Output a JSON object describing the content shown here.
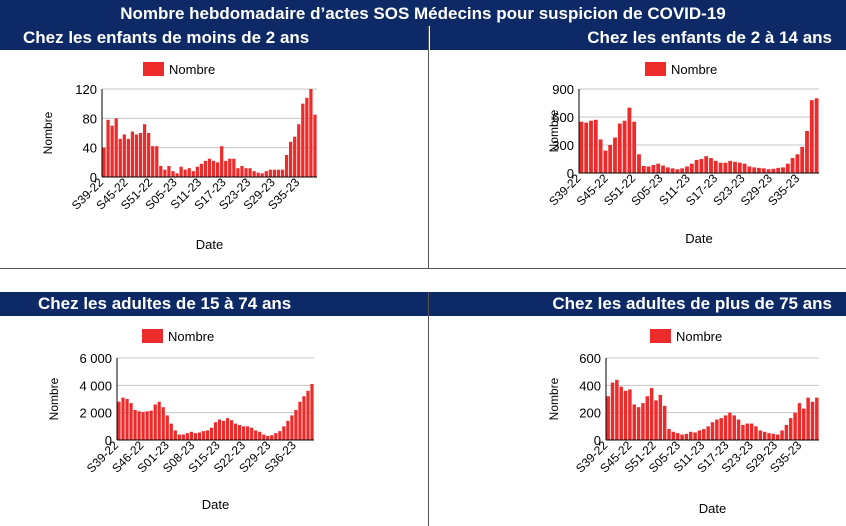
{
  "main_title": "Nombre hebdomadaire d’actes SOS Médecins pour suspicion de COVID-19",
  "colors": {
    "bar": "#ee2b2b",
    "header_bg": "#0d2a66"
  },
  "chart_data": [
    {
      "type": "bar",
      "title": "Chez les enfants de moins de 2 ans",
      "legend": "Nombre",
      "xlabel": "Date",
      "ylabel": "Nombre",
      "ylim": [
        0,
        120
      ],
      "yticks": [
        "0",
        "40",
        "80",
        "120"
      ],
      "tick_labels": [
        "S39-22",
        "S45-22",
        "S51-22",
        "S05-23",
        "S11-23",
        "S17-23",
        "S23-23",
        "S29-23",
        "S35-23"
      ],
      "values": [
        40,
        78,
        70,
        80,
        52,
        58,
        52,
        62,
        58,
        60,
        72,
        60,
        42,
        42,
        15,
        10,
        15,
        8,
        5,
        14,
        10,
        12,
        8,
        14,
        18,
        22,
        25,
        22,
        20,
        42,
        22,
        25,
        25,
        12,
        15,
        12,
        12,
        8,
        6,
        5,
        8,
        10,
        10,
        10,
        10,
        30,
        48,
        55,
        72,
        100,
        108,
        120,
        85
      ]
    },
    {
      "type": "bar",
      "title": "Chez les enfants de 2 à 14 ans",
      "legend": "Nombre",
      "xlabel": "Date",
      "ylabel": "Nombre",
      "ylim": [
        0,
        900
      ],
      "yticks": [
        "0",
        "300",
        "600",
        "900"
      ],
      "tick_labels": [
        "S39-22",
        "S45-22",
        "S51-22",
        "S05-23",
        "S11-23",
        "S17-23",
        "S23-23",
        "S29-23",
        "S35-23"
      ],
      "values": [
        550,
        540,
        560,
        570,
        360,
        240,
        300,
        380,
        530,
        560,
        700,
        550,
        200,
        75,
        70,
        85,
        100,
        80,
        60,
        50,
        40,
        50,
        70,
        100,
        140,
        150,
        180,
        160,
        130,
        110,
        110,
        130,
        120,
        110,
        100,
        70,
        60,
        55,
        50,
        40,
        45,
        55,
        60,
        100,
        160,
        200,
        280,
        450,
        780,
        800
      ]
    },
    {
      "type": "bar",
      "title": "Chez les adultes de 15 à 74 ans",
      "legend": "Nombre",
      "xlabel": "Date",
      "ylabel": "Nombre",
      "ylim": [
        0,
        6000
      ],
      "yticks": [
        "0",
        "2 000",
        "4 000",
        "6 000"
      ],
      "tick_labels": [
        "S39-22",
        "S46-22",
        "S01-23",
        "S08-23",
        "S15-23",
        "S22-23",
        "S29-23",
        "S36-23"
      ],
      "values": [
        2800,
        3100,
        3000,
        2700,
        2200,
        2100,
        2050,
        2100,
        2150,
        2600,
        2800,
        2400,
        1800,
        1200,
        700,
        400,
        400,
        500,
        600,
        500,
        550,
        650,
        700,
        900,
        1300,
        1500,
        1400,
        1600,
        1450,
        1200,
        1100,
        1000,
        1000,
        900,
        700,
        600,
        400,
        300,
        350,
        500,
        650,
        1000,
        1400,
        1800,
        2200,
        2800,
        3200,
        3600,
        4100
      ]
    },
    {
      "type": "bar",
      "title": "Chez les adultes de plus de 75 ans",
      "legend": "Nombre",
      "xlabel": "Date",
      "ylabel": "Nombre",
      "ylim": [
        0,
        600
      ],
      "yticks": [
        "0",
        "200",
        "400",
        "600"
      ],
      "tick_labels": [
        "S39-22",
        "S45-22",
        "S51-22",
        "S05-23",
        "S11-23",
        "S17-23",
        "S23-23",
        "S29-23",
        "S35-23"
      ],
      "values": [
        320,
        420,
        440,
        390,
        360,
        370,
        260,
        240,
        270,
        320,
        380,
        290,
        330,
        250,
        80,
        60,
        50,
        40,
        45,
        60,
        55,
        70,
        80,
        100,
        130,
        150,
        160,
        180,
        200,
        180,
        150,
        110,
        120,
        120,
        100,
        70,
        60,
        50,
        45,
        40,
        70,
        110,
        160,
        200,
        270,
        230,
        310,
        280,
        310
      ]
    }
  ]
}
